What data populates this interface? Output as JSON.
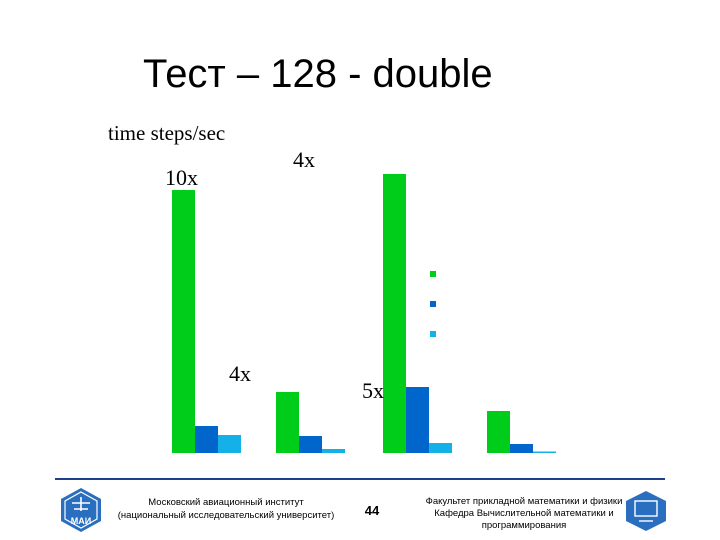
{
  "slide": {
    "title": "Тест – 128 - double",
    "ylabel": "time steps/sec",
    "page_number": "44",
    "footer_left": [
      "Московский авиационный институт",
      "(национальный исследовательский университет)"
    ],
    "footer_right": [
      "Факультет прикладной математики и физики",
      "Кафедра Вычислительной математики и",
      "программирования"
    ],
    "logo_left_text": "МАИ"
  },
  "chart_data": {
    "type": "bar",
    "title": "Тест – 128 - double",
    "ylabel": "time steps/sec",
    "xlabel": "",
    "groups": 4,
    "series": [
      {
        "color": "#00cc1a",
        "values": [
          263,
          61,
          279,
          42
        ]
      },
      {
        "color": "#0066cc",
        "values": [
          27,
          17,
          66,
          9
        ]
      },
      {
        "color": "#13b1e8",
        "values": [
          18,
          4,
          10,
          1.5
        ]
      }
    ],
    "ylim": [
      0,
      290
    ],
    "grid": false,
    "legend": "right",
    "annotations": [
      {
        "text": "10x",
        "group": 0
      },
      {
        "text": "4x",
        "group": 0
      },
      {
        "text": "4x",
        "group": 2
      },
      {
        "text": "5x",
        "group": 2
      }
    ]
  }
}
